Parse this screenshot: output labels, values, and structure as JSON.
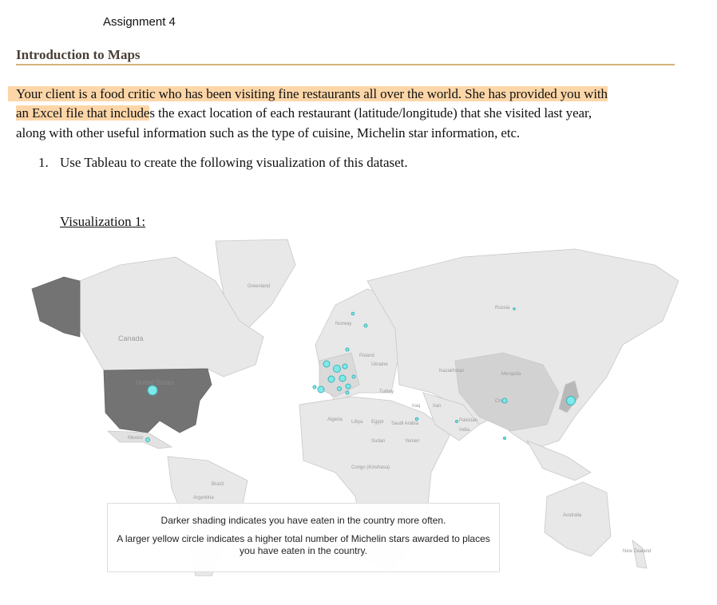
{
  "header": {
    "assignment": "Assignment 4",
    "title": "Introduction to Maps"
  },
  "intro": {
    "line1_highlight": "Your client is a food critic who has been visiting fine restaurants all over the world.  She has provided you with",
    "line2_highlight": "an Excel file that include",
    "line2_rest": "s the exact location of each restaurant (latitude/longitude) that she visited last year,",
    "line3": "along with other useful information such as the type of cuisine, Michelin star information, etc."
  },
  "task": {
    "number": "1.",
    "text": "Use Tableau to create the following visualization of this dataset."
  },
  "visualization": {
    "label": "Visualization 1:",
    "map_labels": [
      "Greenland",
      "Canada",
      "United States",
      "Mexico",
      "Brazil",
      "Argentina",
      "Norway",
      "Poland",
      "Ukraine",
      "Russia",
      "Kazakhstan",
      "Mongolia",
      "China",
      "Turkey",
      "Iraq",
      "Iran",
      "Algeria",
      "Libya",
      "Egypt",
      "Saudi Arabia",
      "Sudan",
      "Yemen",
      "Pakistan",
      "India",
      "Congo (Kinshasa)",
      "Australia",
      "New Zealand"
    ],
    "caption_line1": "Darker shading indicates you have eaten in the country more often.",
    "caption_line2": "A larger yellow circle indicates a higher total number of Michelin stars awarded to places you have eaten in the country.",
    "colors": {
      "land": "#e8e8e8",
      "border": "#c8c8c8",
      "most_visited": "#737373",
      "medium": "#d2d2d2",
      "circle_fill": "#7fe9ea",
      "circle_stroke": "#3fb3b8",
      "highlight": "#fdd6a8",
      "rule": "#d8b27c"
    }
  }
}
